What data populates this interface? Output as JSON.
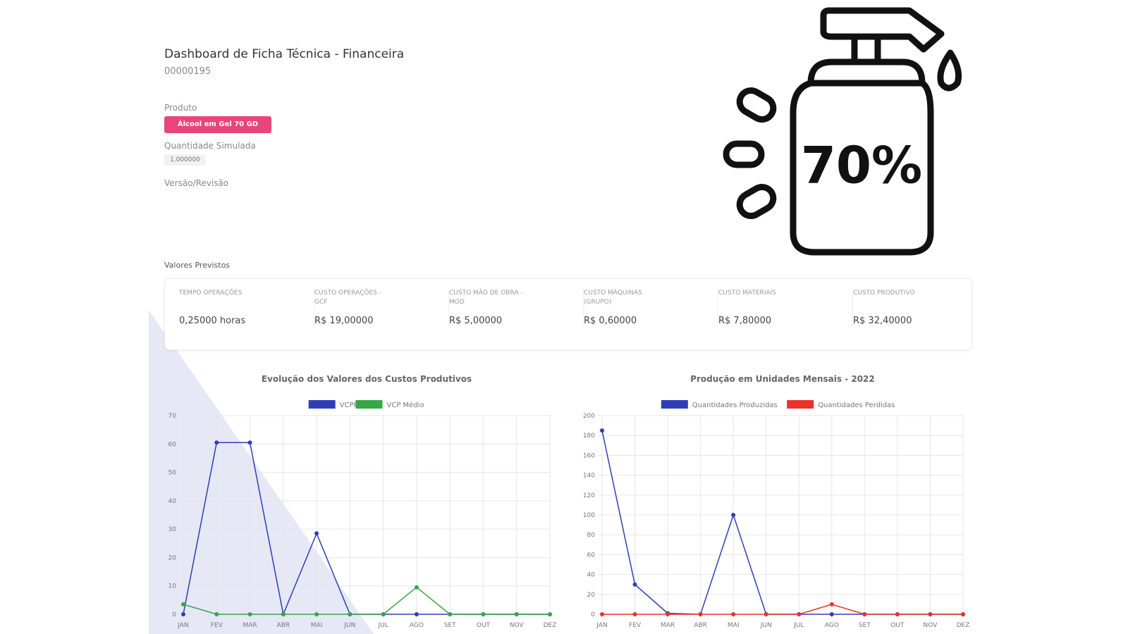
{
  "header": {
    "title": "Dashboard de Ficha Técnica - Financeira",
    "code": "00000195"
  },
  "fields": {
    "product_label": "Produto",
    "product_value": "Álcool em Gel 70 GD",
    "quantity_label": "Quantidade Simulada",
    "quantity_value": "1,000000",
    "version_label": "Versão/Revisão"
  },
  "icon": {
    "label": "70%"
  },
  "summary": {
    "title": "Valores Previstos",
    "cards": [
      {
        "label": "TEMPO OPERAÇÕES",
        "value": "0,25000 horas"
      },
      {
        "label": "CUSTO OPERAÇÕES - GCF",
        "value": "R$ 19,00000"
      },
      {
        "label": "CUSTO MÃO DE OBRA - MOD",
        "value": "R$ 5,00000"
      },
      {
        "label": "CUSTO MÁQUINAS (GRUPO)",
        "value": "R$ 0,60000"
      },
      {
        "label": "CUSTO MATERIAIS",
        "value": "R$ 7,80000"
      },
      {
        "label": "CUSTO PRODUTIVO",
        "value": "R$ 32,40000"
      }
    ]
  },
  "chart_data": [
    {
      "type": "line",
      "title": "Evolução dos Valores dos Custos Produtivos",
      "categories": [
        "JAN",
        "FEV",
        "MAR",
        "ABR",
        "MAI",
        "JUN",
        "JUL",
        "AGO",
        "SET",
        "OUT",
        "NOV",
        "DEZ"
      ],
      "series": [
        {
          "name": "VCPP",
          "color": "#2e3fb5",
          "values": [
            0,
            60.5,
            60.5,
            0,
            28.5,
            0,
            0,
            0,
            0,
            0,
            0,
            0
          ]
        },
        {
          "name": "VCP Médio",
          "color": "#35a845",
          "values": [
            3.5,
            0,
            0,
            0,
            0,
            0,
            0,
            9.5,
            0,
            0,
            0,
            0
          ]
        }
      ],
      "ylim": [
        0,
        70
      ],
      "yticks": [
        0,
        10,
        20,
        30,
        40,
        50,
        60,
        70
      ],
      "grid": true
    },
    {
      "type": "line",
      "title": "Produção em Unidades Mensais - 2022",
      "categories": [
        "JAN",
        "FEV",
        "MAR",
        "ABR",
        "MAI",
        "JUN",
        "JUL",
        "AGO",
        "SET",
        "OUT",
        "NOV",
        "DEZ"
      ],
      "series": [
        {
          "name": "Quantidades Produzidas",
          "color": "#2e3fb5",
          "values": [
            185,
            30,
            1,
            0,
            100,
            0,
            0,
            0,
            0,
            0,
            0,
            0
          ]
        },
        {
          "name": "Quantidades Perdidas",
          "color": "#e8332a",
          "values": [
            0,
            0,
            0,
            0,
            0,
            0,
            0,
            10,
            0,
            0,
            0,
            0
          ]
        }
      ],
      "ylim": [
        0,
        200
      ],
      "yticks": [
        0,
        20,
        40,
        60,
        80,
        100,
        120,
        140,
        160,
        180,
        200
      ],
      "grid": true
    }
  ]
}
